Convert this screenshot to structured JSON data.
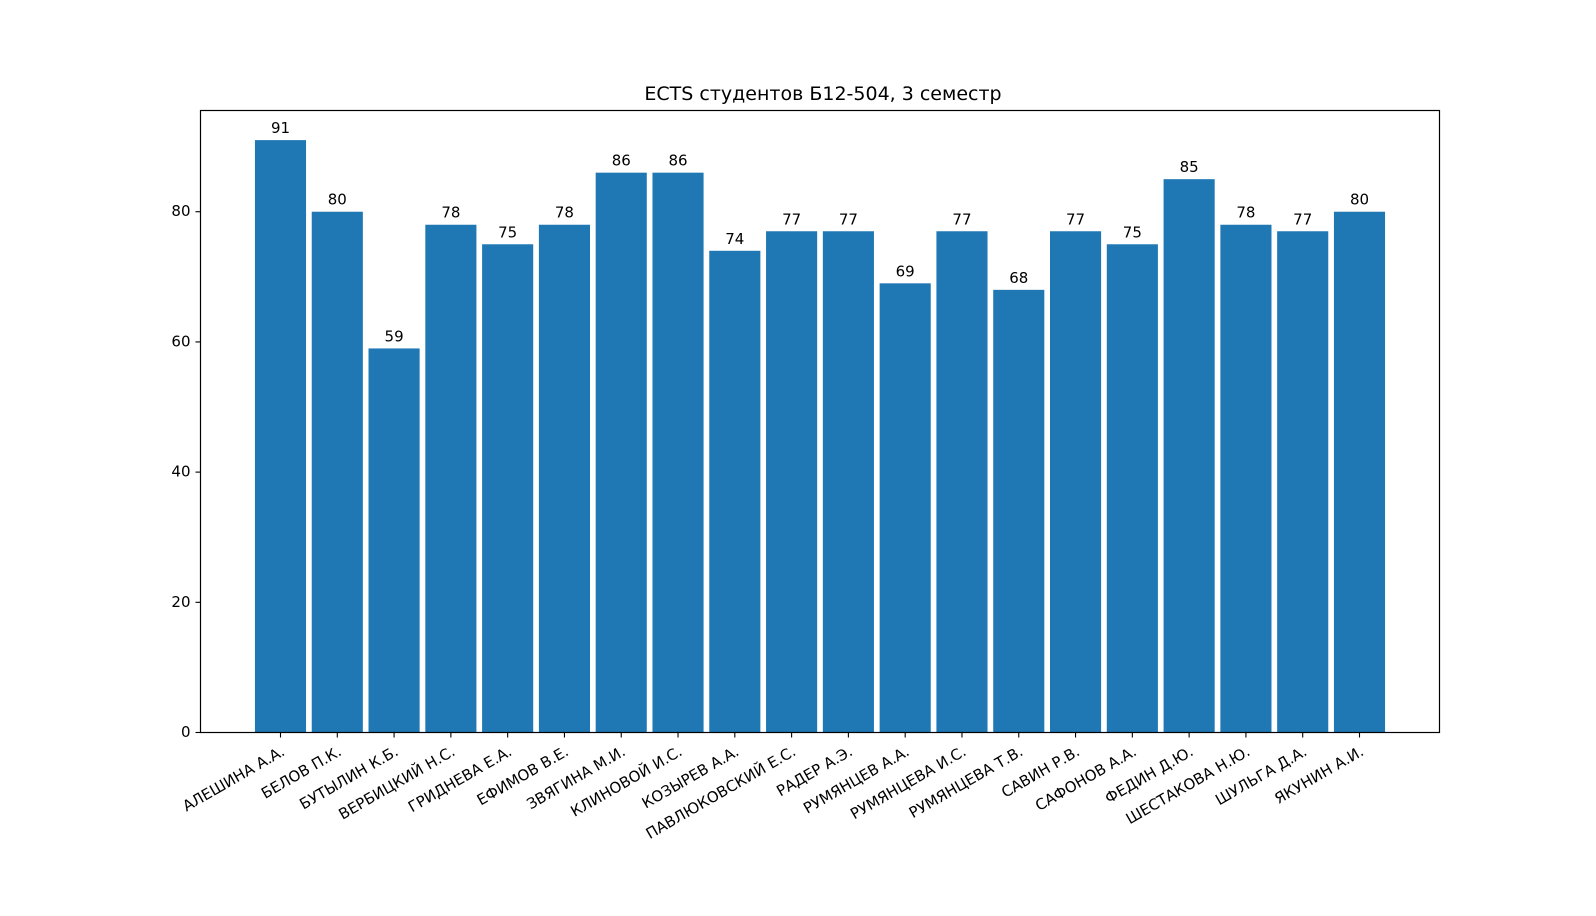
{
  "chart_data": {
    "type": "bar",
    "title": "ECTS студентов Б12-504, 3 семестр",
    "xlabel": "",
    "ylabel": "",
    "ylim": [
      0,
      95.55
    ],
    "yticks": [
      0,
      20,
      40,
      60,
      80
    ],
    "categories": [
      "АЛЕШИНА А.А.",
      "БЕЛОВ П.К.",
      "БУТЫЛИН К.Б.",
      "ВЕРБИЦКИЙ Н.С.",
      "ГРИДНЕВА Е.А.",
      "ЕФИМОВ В.Е.",
      "ЗВЯГИНА М.И.",
      "КЛИНОВОЙ И.С.",
      "КОЗЫРЕВ А.А.",
      "ПАВЛЮКОВСКИЙ Е.С.",
      "РАДЕР А.Э.",
      "РУМЯНЦЕВ А.А.",
      "РУМЯНЦЕВА И.С.",
      "РУМЯНЦЕВА Т.В.",
      "САВИН Р.В.",
      "САФОНОВ А.А.",
      "ФЕДИН Д.Ю.",
      "ШЕСТАКОВА Н.Ю.",
      "ШУЛЬГА Д.А.",
      "ЯКУНИН А.И."
    ],
    "values": [
      91,
      80,
      59,
      78,
      75,
      78,
      86,
      86,
      74,
      77,
      77,
      69,
      77,
      68,
      77,
      75,
      85,
      78,
      77,
      80
    ],
    "bar_color": "#1f77b4",
    "grid": false,
    "data_labels": true
  }
}
